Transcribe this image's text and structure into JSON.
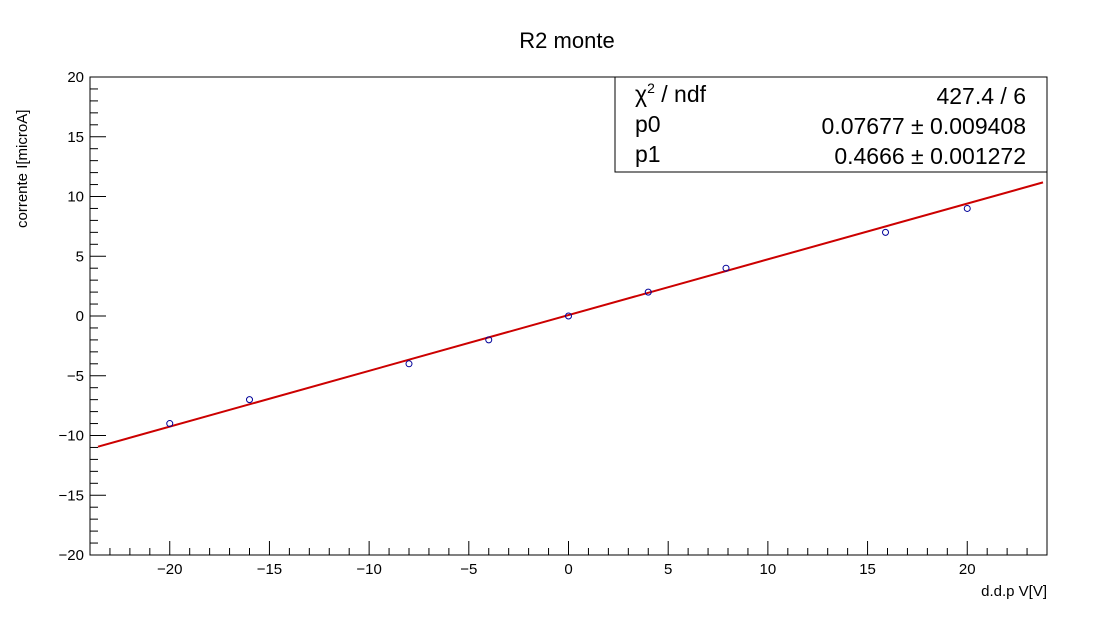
{
  "chart_data": {
    "type": "scatter",
    "title": "R2 monte",
    "xlabel": "d.d.p V[V]",
    "ylabel": "corrente I[microA]",
    "xlim": [
      -24,
      24
    ],
    "ylim": [
      -20,
      20
    ],
    "x_ticks": [
      -20,
      -15,
      -10,
      -5,
      0,
      5,
      10,
      15,
      20
    ],
    "x_tick_labels": [
      "−20",
      "−15",
      "−10",
      "−5",
      "0",
      "5",
      "10",
      "15",
      "20"
    ],
    "y_ticks": [
      -20,
      -15,
      -10,
      -5,
      0,
      5,
      10,
      15,
      20
    ],
    "y_tick_labels": [
      "−20",
      "−15",
      "−10",
      "−5",
      "0",
      "5",
      "10",
      "15",
      "20"
    ],
    "grid": false,
    "points": {
      "x": [
        -20,
        -16,
        -8,
        -4,
        0,
        4,
        7.9,
        15.9,
        20
      ],
      "y": [
        -9,
        -7,
        -4,
        -2,
        0,
        2,
        4,
        7,
        9
      ]
    },
    "fit": {
      "type": "linear",
      "p0": 0.07677,
      "p1": 0.4666,
      "color": "#cc0000"
    },
    "marker_color": "#000099",
    "stats_box": {
      "position": "top-right",
      "rows": [
        {
          "label_main": "χ",
          "label_sup": "2",
          "label_rest": " / ndf",
          "value": "427.4 / 6"
        },
        {
          "label_main": "p0",
          "label_sup": "",
          "label_rest": "",
          "value": "0.07677 ± 0.009408"
        },
        {
          "label_main": "p1",
          "label_sup": "",
          "label_rest": "",
          "value": "0.4666 ± 0.001272"
        }
      ]
    }
  }
}
